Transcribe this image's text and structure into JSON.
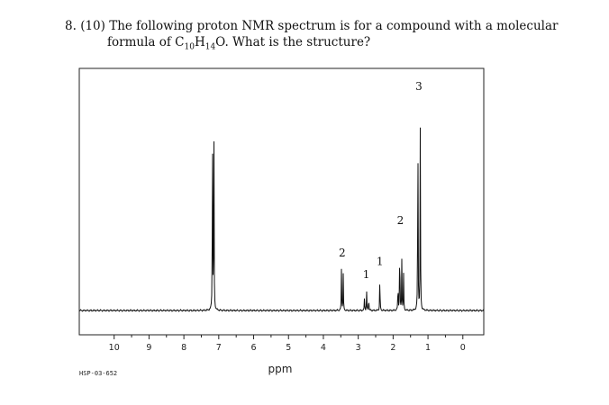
{
  "question": {
    "number": "8.",
    "points": "(10)",
    "line1": "The following proton NMR spectrum is for a compound with a molecular",
    "line2_prefix": "formula of C",
    "c_count": "10",
    "h_symbol": "H",
    "h_count": "14",
    "o_symbol": "O",
    "line2_suffix": ". What is the structure?"
  },
  "chart_data": {
    "type": "line",
    "title": "",
    "xlabel": "ppm",
    "ylabel": "",
    "xlim": [
      11.0,
      -0.6
    ],
    "x_reversed": true,
    "ylim": [
      0,
      1.0
    ],
    "grid": false,
    "x_ticks": [
      10,
      9,
      8,
      7,
      6,
      5,
      4,
      3,
      2,
      1,
      0
    ],
    "x_tick_labels": [
      "10",
      "9",
      "8",
      "7",
      "6",
      "5",
      "4",
      "3",
      "2",
      "1",
      "0"
    ],
    "spectrum_code": "HSP-03-652",
    "peaks": [
      {
        "ppm": 7.18,
        "height": 0.96
      },
      {
        "ppm": 7.14,
        "height": 0.88
      },
      {
        "ppm": 3.48,
        "height": 0.21
      },
      {
        "ppm": 3.43,
        "height": 0.17
      },
      {
        "ppm": 2.82,
        "height": 0.07
      },
      {
        "ppm": 2.76,
        "height": 0.09
      },
      {
        "ppm": 2.7,
        "height": 0.07
      },
      {
        "ppm": 2.38,
        "height": 0.17
      },
      {
        "ppm": 1.86,
        "height": 0.14
      },
      {
        "ppm": 1.81,
        "height": 0.36
      },
      {
        "ppm": 1.75,
        "height": 0.24
      },
      {
        "ppm": 1.7,
        "height": 0.17
      },
      {
        "ppm": 1.29,
        "height": 0.98
      },
      {
        "ppm": 1.22,
        "height": 0.88
      }
    ],
    "annotations": [
      {
        "text": "2",
        "ppm": 3.46,
        "height": 0.25
      },
      {
        "text": "1",
        "ppm": 2.77,
        "height": 0.15
      },
      {
        "text": "1",
        "ppm": 2.38,
        "height": 0.21
      },
      {
        "text": "2",
        "ppm": 1.79,
        "height": 0.4
      },
      {
        "text": "3",
        "ppm": 1.26,
        "height": 1.02
      }
    ]
  }
}
